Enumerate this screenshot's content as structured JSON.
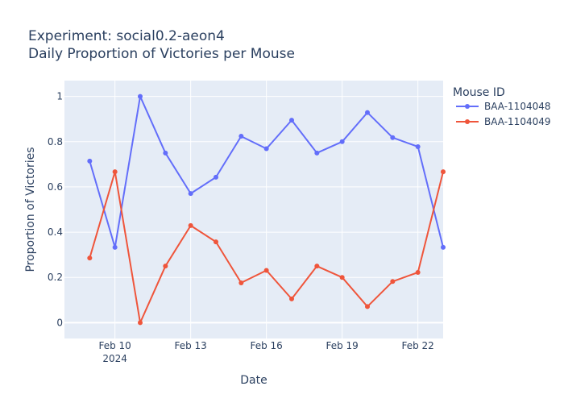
{
  "chart_data": {
    "type": "line",
    "title_line1": "Experiment: social0.2-aeon4",
    "title_line2": "Daily Proportion of Victories per Mouse",
    "xlabel": "Date",
    "ylabel": "Proportion of Victories",
    "x": [
      "2024-02-09",
      "2024-02-10",
      "2024-02-11",
      "2024-02-12",
      "2024-02-13",
      "2024-02-14",
      "2024-02-15",
      "2024-02-16",
      "2024-02-17",
      "2024-02-18",
      "2024-02-19",
      "2024-02-20",
      "2024-02-21",
      "2024-02-22",
      "2024-02-23"
    ],
    "x_range": [
      "2024-02-08",
      "2024-02-23"
    ],
    "x_ticks": [
      {
        "date": "2024-02-10",
        "label": "Feb 10",
        "sublabel": "2024"
      },
      {
        "date": "2024-02-13",
        "label": "Feb 13",
        "sublabel": ""
      },
      {
        "date": "2024-02-16",
        "label": "Feb 16",
        "sublabel": ""
      },
      {
        "date": "2024-02-19",
        "label": "Feb 19",
        "sublabel": ""
      },
      {
        "date": "2024-02-22",
        "label": "Feb 22",
        "sublabel": ""
      }
    ],
    "ylim": [
      -0.07,
      1.07
    ],
    "y_ticks": [
      0,
      0.2,
      0.4,
      0.6,
      0.8,
      1
    ],
    "y_tick_labels": [
      "0",
      "0.2",
      "0.4",
      "0.6",
      "0.8",
      "1"
    ],
    "grid": true,
    "legend_title": "Mouse ID",
    "legend_position": "top-right outside",
    "series": [
      {
        "name": "BAA-1104048",
        "color": "#636efa",
        "values": [
          0.714,
          0.333,
          1.0,
          0.75,
          0.571,
          0.643,
          0.824,
          0.769,
          0.895,
          0.75,
          0.8,
          0.929,
          0.818,
          0.778,
          0.333
        ]
      },
      {
        "name": "BAA-1104049",
        "color": "#ef553b",
        "values": [
          0.286,
          0.667,
          0.0,
          0.25,
          0.429,
          0.357,
          0.176,
          0.231,
          0.105,
          0.25,
          0.2,
          0.071,
          0.182,
          0.222,
          0.667
        ]
      }
    ],
    "plot_bg": "#e5ecf6",
    "grid_color": "#ffffff"
  }
}
